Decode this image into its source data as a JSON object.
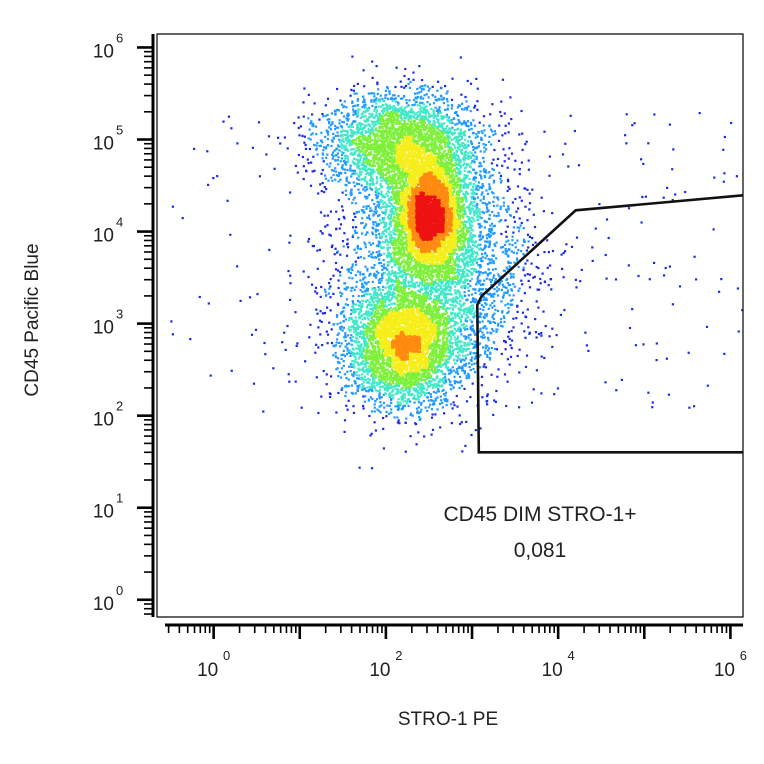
{
  "chart_data": {
    "type": "scatter",
    "title": "",
    "xlabel": "STRO-1 PE",
    "ylabel": "CD45 Pacific Blue",
    "x_scale": "log",
    "y_scale": "log",
    "xlim": [
      0.22,
      1400000
    ],
    "ylim": [
      0.65,
      1400000
    ],
    "x_ticks": [
      {
        "value": 1,
        "base": "10",
        "exp": "0"
      },
      {
        "value": 100,
        "base": "10",
        "exp": "2"
      },
      {
        "value": 10000,
        "base": "10",
        "exp": "4"
      },
      {
        "value": 1000000,
        "base": "10",
        "exp": "6"
      }
    ],
    "y_ticks": [
      {
        "value": 1,
        "base": "10",
        "exp": "0"
      },
      {
        "value": 10,
        "base": "10",
        "exp": "1"
      },
      {
        "value": 100,
        "base": "10",
        "exp": "2"
      },
      {
        "value": 1000,
        "base": "10",
        "exp": "3"
      },
      {
        "value": 10000,
        "base": "10",
        "exp": "4"
      },
      {
        "value": 100000,
        "base": "10",
        "exp": "5"
      },
      {
        "value": 1000000,
        "base": "10",
        "exp": "6"
      }
    ],
    "density_colormap": [
      "#1a2be8",
      "#1f9bff",
      "#3fe8c8",
      "#7ef03a",
      "#f6ee1a",
      "#ff8a10",
      "#ee1212"
    ],
    "populations": [
      {
        "x_center": 150,
        "y_center": 90000,
        "x_spread_decades": 0.45,
        "y_spread_decades": 0.28,
        "weight": 0.22
      },
      {
        "x_center": 320,
        "y_center": 15000,
        "x_spread_decades": 0.22,
        "y_spread_decades": 0.32,
        "weight": 0.3
      },
      {
        "x_center": 160,
        "y_center": 600,
        "x_spread_decades": 0.33,
        "y_spread_decades": 0.32,
        "weight": 0.28
      },
      {
        "x_center": 400,
        "y_center": 4000,
        "x_spread_decades": 0.55,
        "y_spread_decades": 0.6,
        "weight": 0.2
      }
    ],
    "gate": {
      "label": "CD45 DIM STRO-1+",
      "value": "0,081",
      "vertices": [
        [
          1200,
          40
        ],
        [
          1600000,
          40
        ],
        [
          1600000,
          25000
        ],
        [
          16000,
          17000
        ],
        [
          1300,
          2000
        ],
        [
          1150,
          1600
        ]
      ]
    },
    "grid": false,
    "legend": "none"
  }
}
